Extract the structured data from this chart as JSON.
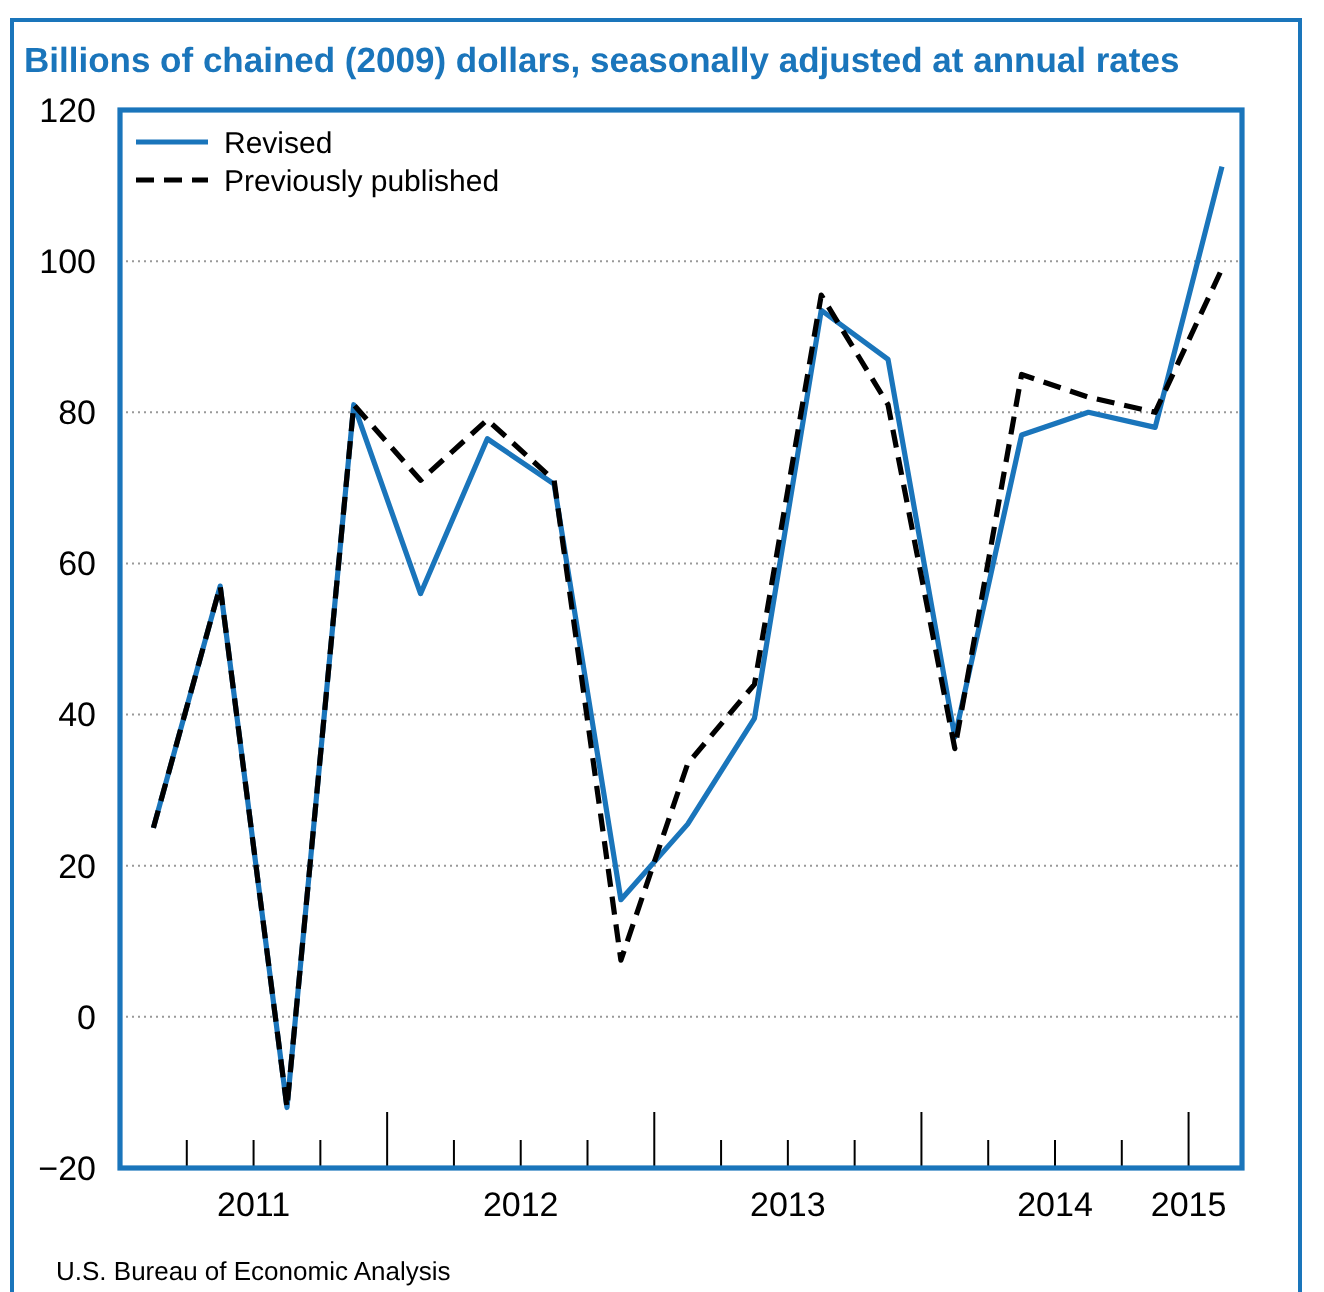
{
  "chart_data": {
    "type": "line",
    "title": "Billions of chained (2009) dollars, seasonally adjusted at annual rates",
    "x": [
      2011.125,
      2011.375,
      2011.625,
      2011.875,
      2012.125,
      2012.375,
      2012.625,
      2012.875,
      2013.125,
      2013.375,
      2013.625,
      2013.875,
      2014.125,
      2014.375,
      2014.625,
      2014.875,
      2015.125
    ],
    "series": [
      {
        "name": "Revised",
        "color": "#1a75bb",
        "line_style": "solid",
        "values": [
          25,
          57,
          -12,
          81,
          56,
          76.5,
          70.5,
          15.5,
          25.5,
          39.5,
          93.5,
          87,
          37,
          77,
          80,
          78,
          112.5
        ]
      },
      {
        "name": "Previously published",
        "color": "#000000",
        "line_style": "dashed",
        "values": [
          25,
          57,
          -12,
          81,
          71,
          79,
          71,
          7.5,
          33.5,
          44,
          95.5,
          81,
          35.5,
          85,
          82,
          80,
          99
        ]
      }
    ],
    "xlim": [
      2011,
      2015.2
    ],
    "xticks": [
      {
        "value": 2011.25,
        "label": null
      },
      {
        "value": 2011.5,
        "label": "2011"
      },
      {
        "value": 2011.75,
        "label": null
      },
      {
        "value": 2012,
        "label": null
      },
      {
        "value": 2012.25,
        "label": null
      },
      {
        "value": 2012.5,
        "label": "2012"
      },
      {
        "value": 2012.75,
        "label": null
      },
      {
        "value": 2013,
        "label": null
      },
      {
        "value": 2013.25,
        "label": null
      },
      {
        "value": 2013.5,
        "label": "2013"
      },
      {
        "value": 2013.75,
        "label": null
      },
      {
        "value": 2014,
        "label": null
      },
      {
        "value": 2014.25,
        "label": null
      },
      {
        "value": 2014.5,
        "label": "2014"
      },
      {
        "value": 2014.75,
        "label": null
      },
      {
        "value": 2015,
        "label": "2015"
      }
    ],
    "ylim": [
      -20,
      120
    ],
    "yticks": [
      {
        "value": -20,
        "label": "−20"
      },
      0,
      20,
      40,
      60,
      80,
      100,
      120
    ],
    "grid": "y",
    "legend": "top left",
    "marker": "none",
    "annotations": [
      "U.S. Bureau of Economic Analysis"
    ]
  }
}
